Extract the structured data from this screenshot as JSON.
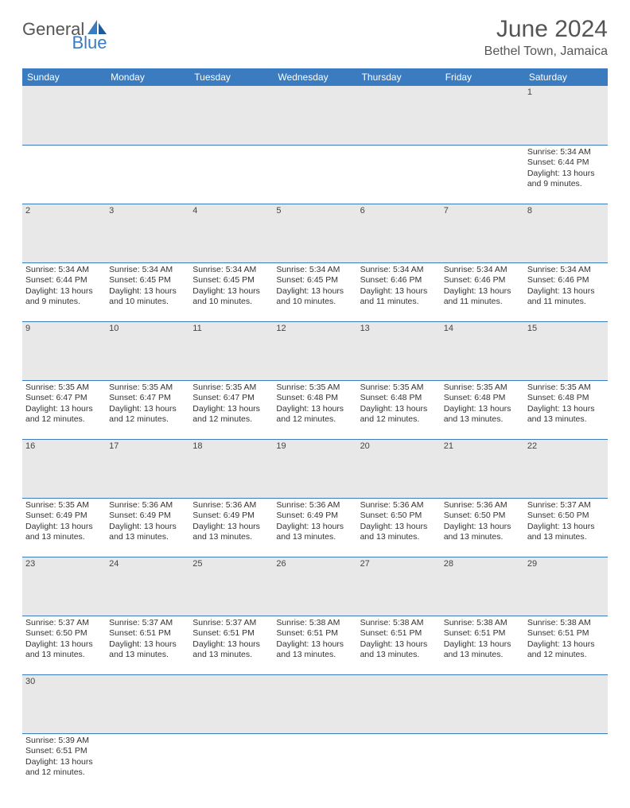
{
  "logo": {
    "part1": "General",
    "part2": "Blue"
  },
  "title": "June 2024",
  "location": "Bethel Town, Jamaica",
  "colors": {
    "header_bg": "#3b7bbf",
    "daynum_bg": "#e8e8e8",
    "text": "#333333"
  },
  "day_headers": [
    "Sunday",
    "Monday",
    "Tuesday",
    "Wednesday",
    "Thursday",
    "Friday",
    "Saturday"
  ],
  "weeks": [
    {
      "nums": [
        "",
        "",
        "",
        "",
        "",
        "",
        "1"
      ],
      "cells": [
        null,
        null,
        null,
        null,
        null,
        null,
        {
          "sunrise": "5:34 AM",
          "sunset": "6:44 PM",
          "daylight": "13 hours and 9 minutes."
        }
      ]
    },
    {
      "nums": [
        "2",
        "3",
        "4",
        "5",
        "6",
        "7",
        "8"
      ],
      "cells": [
        {
          "sunrise": "5:34 AM",
          "sunset": "6:44 PM",
          "daylight": "13 hours and 9 minutes."
        },
        {
          "sunrise": "5:34 AM",
          "sunset": "6:45 PM",
          "daylight": "13 hours and 10 minutes."
        },
        {
          "sunrise": "5:34 AM",
          "sunset": "6:45 PM",
          "daylight": "13 hours and 10 minutes."
        },
        {
          "sunrise": "5:34 AM",
          "sunset": "6:45 PM",
          "daylight": "13 hours and 10 minutes."
        },
        {
          "sunrise": "5:34 AM",
          "sunset": "6:46 PM",
          "daylight": "13 hours and 11 minutes."
        },
        {
          "sunrise": "5:34 AM",
          "sunset": "6:46 PM",
          "daylight": "13 hours and 11 minutes."
        },
        {
          "sunrise": "5:34 AM",
          "sunset": "6:46 PM",
          "daylight": "13 hours and 11 minutes."
        }
      ]
    },
    {
      "nums": [
        "9",
        "10",
        "11",
        "12",
        "13",
        "14",
        "15"
      ],
      "cells": [
        {
          "sunrise": "5:35 AM",
          "sunset": "6:47 PM",
          "daylight": "13 hours and 12 minutes."
        },
        {
          "sunrise": "5:35 AM",
          "sunset": "6:47 PM",
          "daylight": "13 hours and 12 minutes."
        },
        {
          "sunrise": "5:35 AM",
          "sunset": "6:47 PM",
          "daylight": "13 hours and 12 minutes."
        },
        {
          "sunrise": "5:35 AM",
          "sunset": "6:48 PM",
          "daylight": "13 hours and 12 minutes."
        },
        {
          "sunrise": "5:35 AM",
          "sunset": "6:48 PM",
          "daylight": "13 hours and 12 minutes."
        },
        {
          "sunrise": "5:35 AM",
          "sunset": "6:48 PM",
          "daylight": "13 hours and 13 minutes."
        },
        {
          "sunrise": "5:35 AM",
          "sunset": "6:48 PM",
          "daylight": "13 hours and 13 minutes."
        }
      ]
    },
    {
      "nums": [
        "16",
        "17",
        "18",
        "19",
        "20",
        "21",
        "22"
      ],
      "cells": [
        {
          "sunrise": "5:35 AM",
          "sunset": "6:49 PM",
          "daylight": "13 hours and 13 minutes."
        },
        {
          "sunrise": "5:36 AM",
          "sunset": "6:49 PM",
          "daylight": "13 hours and 13 minutes."
        },
        {
          "sunrise": "5:36 AM",
          "sunset": "6:49 PM",
          "daylight": "13 hours and 13 minutes."
        },
        {
          "sunrise": "5:36 AM",
          "sunset": "6:49 PM",
          "daylight": "13 hours and 13 minutes."
        },
        {
          "sunrise": "5:36 AM",
          "sunset": "6:50 PM",
          "daylight": "13 hours and 13 minutes."
        },
        {
          "sunrise": "5:36 AM",
          "sunset": "6:50 PM",
          "daylight": "13 hours and 13 minutes."
        },
        {
          "sunrise": "5:37 AM",
          "sunset": "6:50 PM",
          "daylight": "13 hours and 13 minutes."
        }
      ]
    },
    {
      "nums": [
        "23",
        "24",
        "25",
        "26",
        "27",
        "28",
        "29"
      ],
      "cells": [
        {
          "sunrise": "5:37 AM",
          "sunset": "6:50 PM",
          "daylight": "13 hours and 13 minutes."
        },
        {
          "sunrise": "5:37 AM",
          "sunset": "6:51 PM",
          "daylight": "13 hours and 13 minutes."
        },
        {
          "sunrise": "5:37 AM",
          "sunset": "6:51 PM",
          "daylight": "13 hours and 13 minutes."
        },
        {
          "sunrise": "5:38 AM",
          "sunset": "6:51 PM",
          "daylight": "13 hours and 13 minutes."
        },
        {
          "sunrise": "5:38 AM",
          "sunset": "6:51 PM",
          "daylight": "13 hours and 13 minutes."
        },
        {
          "sunrise": "5:38 AM",
          "sunset": "6:51 PM",
          "daylight": "13 hours and 13 minutes."
        },
        {
          "sunrise": "5:38 AM",
          "sunset": "6:51 PM",
          "daylight": "13 hours and 12 minutes."
        }
      ]
    },
    {
      "nums": [
        "30",
        "",
        "",
        "",
        "",
        "",
        ""
      ],
      "cells": [
        {
          "sunrise": "5:39 AM",
          "sunset": "6:51 PM",
          "daylight": "13 hours and 12 minutes."
        },
        null,
        null,
        null,
        null,
        null,
        null
      ]
    }
  ]
}
